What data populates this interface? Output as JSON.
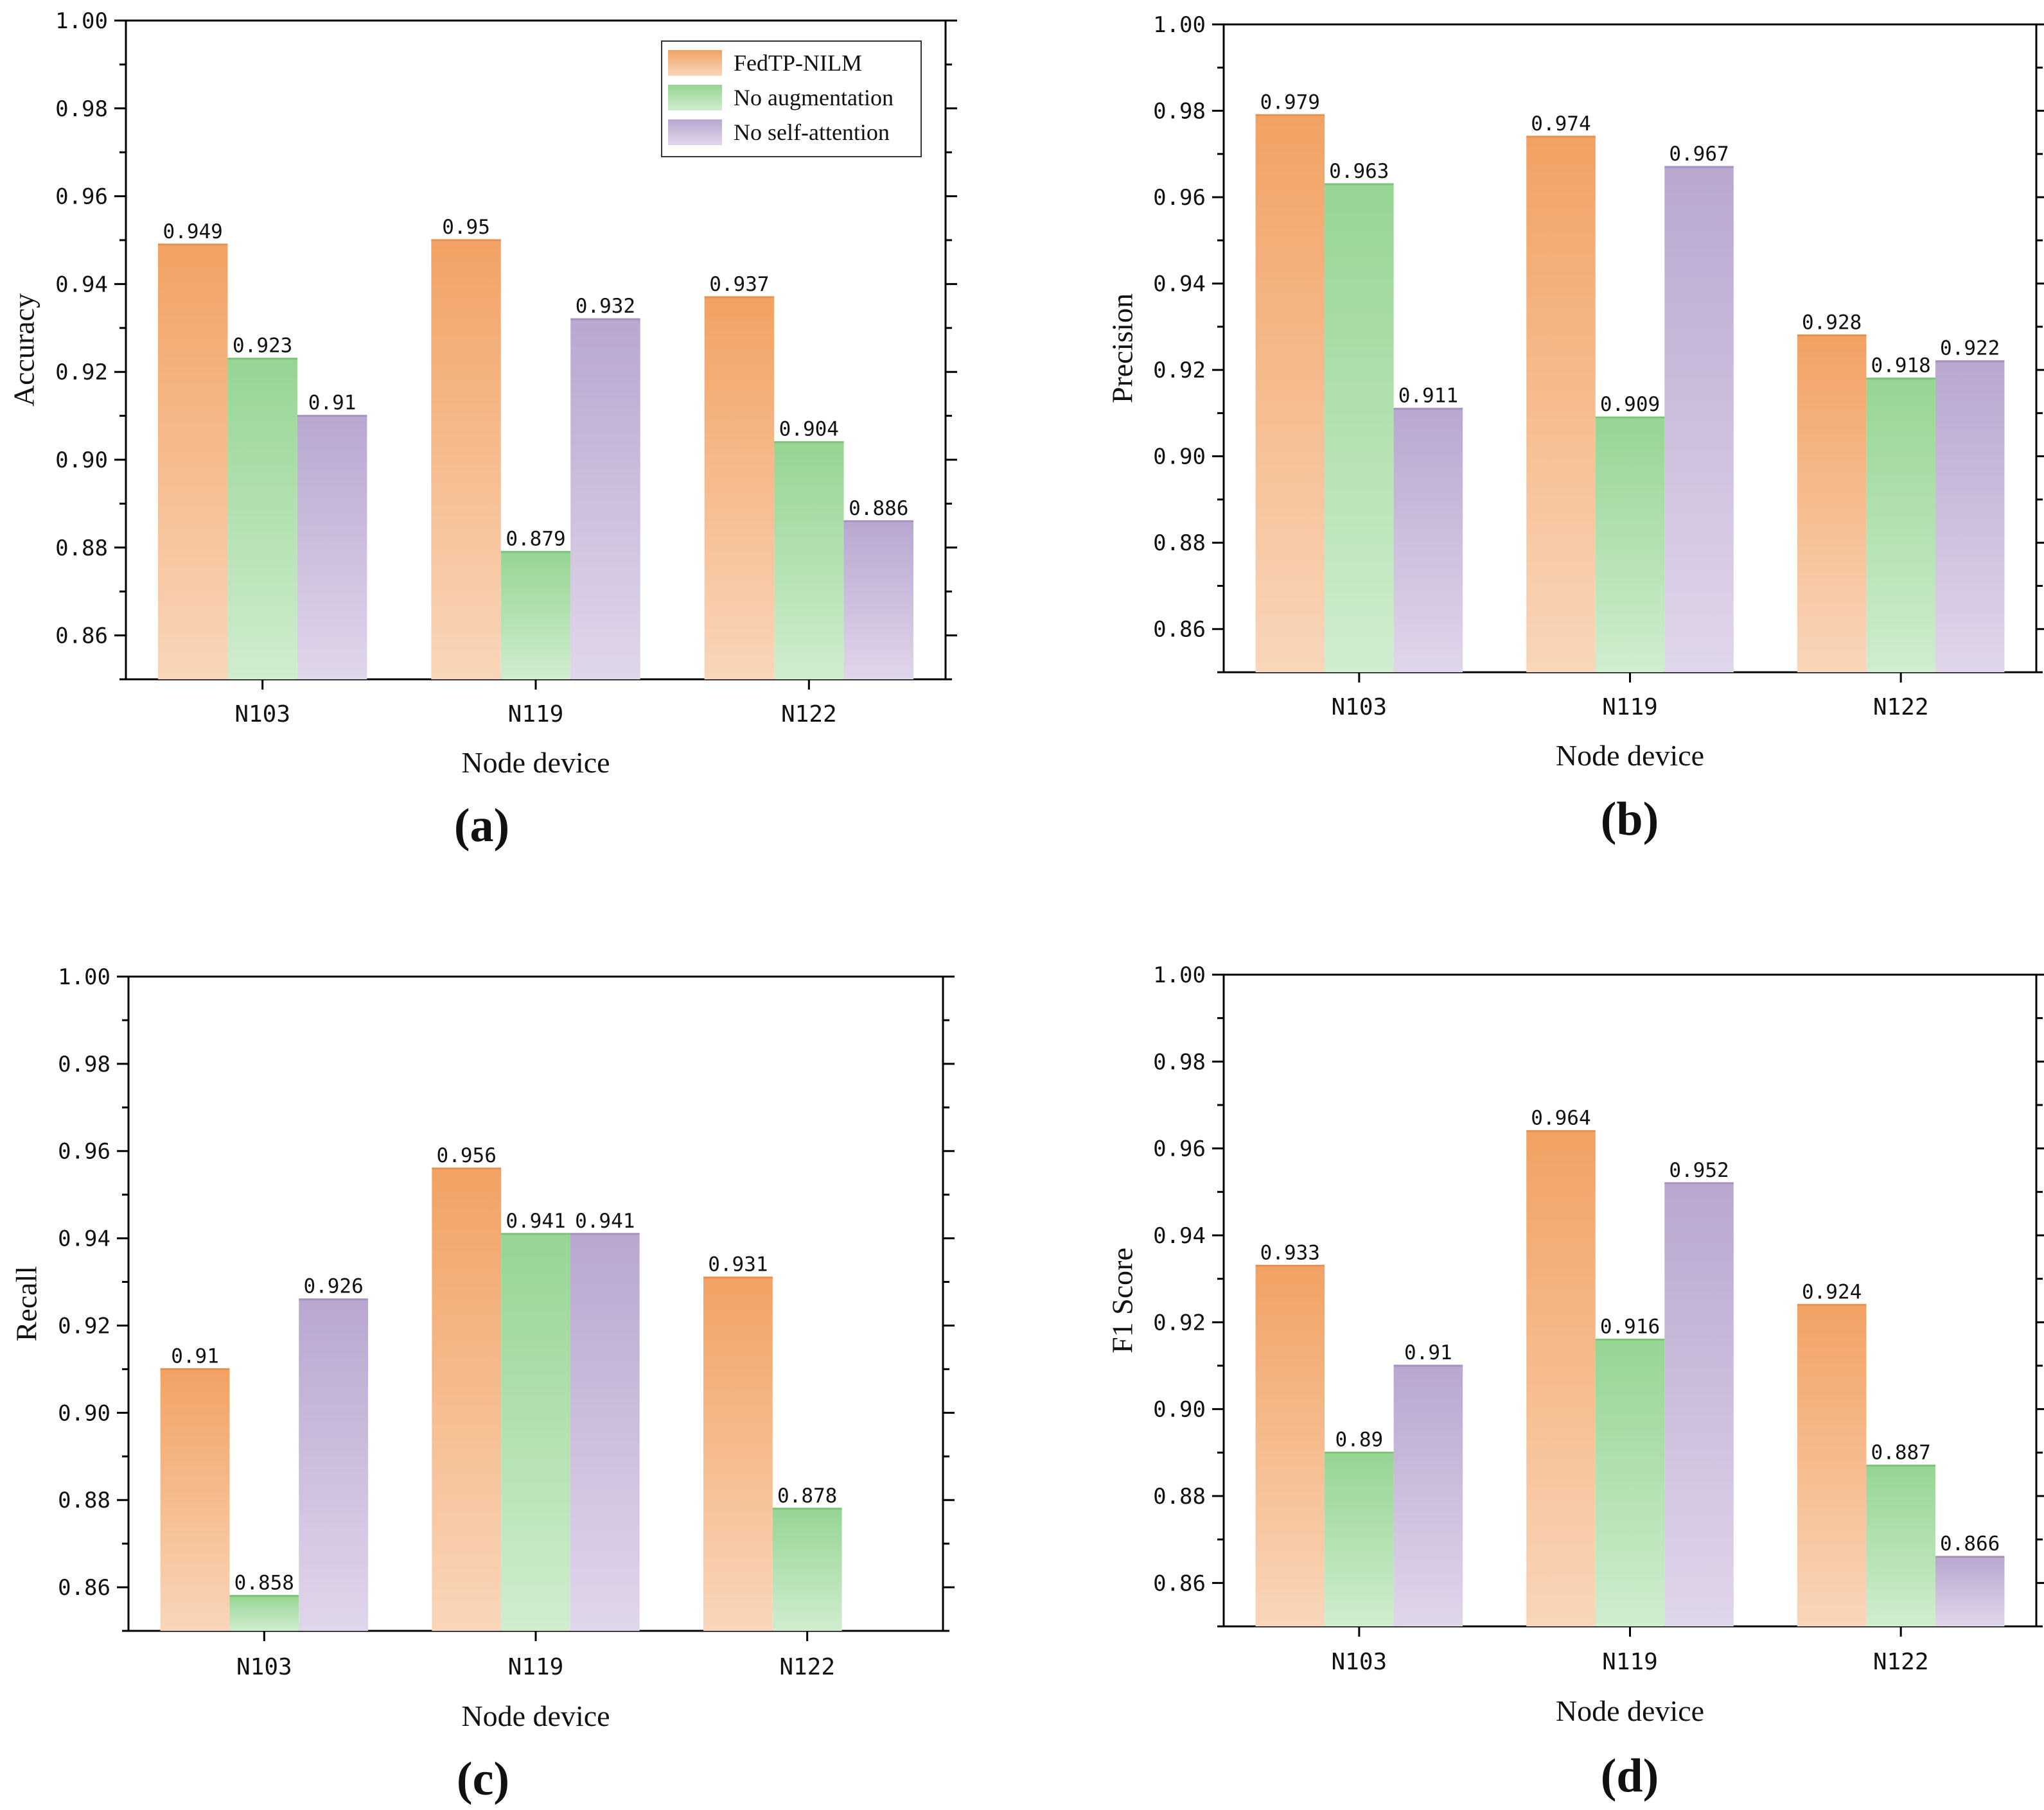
{
  "colors": {
    "FedTP-NILM": {
      "top": "#F2A263",
      "bottom": "#F9D6BA"
    },
    "No augmentation": {
      "top": "#96D593",
      "bottom": "#D0EDCF"
    },
    "No self-attention": {
      "top": "#B9A7D0",
      "bottom": "#E0D6EA"
    }
  },
  "legend": [
    "FedTP-NILM",
    "No augmentation",
    "No self-attention"
  ],
  "chart_data": [
    {
      "type": "bar",
      "panel": "(a)",
      "categories": [
        "N103",
        "N119",
        "N122"
      ],
      "series": [
        {
          "name": "FedTP-NILM",
          "values": [
            0.949,
            0.95,
            0.937
          ],
          "labels": [
            "0.949",
            "0.95",
            "0.937"
          ]
        },
        {
          "name": "No augmentation",
          "values": [
            0.923,
            0.879,
            0.904
          ],
          "labels": [
            "0.923",
            "0.879",
            "0.904"
          ]
        },
        {
          "name": "No self-attention",
          "values": [
            0.91,
            0.932,
            0.886
          ],
          "labels": [
            "0.91",
            "0.932",
            "0.886"
          ]
        }
      ],
      "xlabel": "Node device",
      "ylabel": "Accuracy",
      "ylim": [
        0.85,
        1.0
      ],
      "yticks": [
        "0.86",
        "0.88",
        "0.90",
        "0.92",
        "0.94",
        "0.96",
        "0.98",
        "1.00"
      ],
      "legend_position": "top-right"
    },
    {
      "type": "bar",
      "panel": "(b)",
      "categories": [
        "N103",
        "N119",
        "N122"
      ],
      "series": [
        {
          "name": "FedTP-NILM",
          "values": [
            0.979,
            0.974,
            0.928
          ],
          "labels": [
            "0.979",
            "0.974",
            "0.928"
          ]
        },
        {
          "name": "No augmentation",
          "values": [
            0.963,
            0.909,
            0.918
          ],
          "labels": [
            "0.963",
            "0.909",
            "0.918"
          ]
        },
        {
          "name": "No self-attention",
          "values": [
            0.911,
            0.967,
            0.922
          ],
          "labels": [
            "0.911",
            "0.967",
            "0.922"
          ]
        }
      ],
      "xlabel": "Node device",
      "ylabel": "Precision",
      "ylim": [
        0.85,
        1.0
      ],
      "yticks": [
        "0.86",
        "0.88",
        "0.90",
        "0.92",
        "0.94",
        "0.96",
        "0.98",
        "1.00"
      ]
    },
    {
      "type": "bar",
      "panel": "(c)",
      "categories": [
        "N103",
        "N119",
        "N122"
      ],
      "series": [
        {
          "name": "FedTP-NILM",
          "values": [
            0.91,
            0.956,
            0.931
          ],
          "labels": [
            "0.91",
            "0.956",
            "0.931"
          ]
        },
        {
          "name": "No augmentation",
          "values": [
            0.858,
            0.941,
            0.878
          ],
          "labels": [
            "0.858",
            "0.941",
            "0.878"
          ]
        },
        {
          "name": "No self-attention",
          "values": [
            0.926,
            0.941,
            null
          ],
          "labels": [
            "0.926",
            "0.941",
            ""
          ]
        }
      ],
      "xlabel": "Node device",
      "ylabel": "Recall",
      "ylim": [
        0.85,
        1.0
      ],
      "yticks": [
        "0.86",
        "0.88",
        "0.90",
        "0.92",
        "0.94",
        "0.96",
        "0.98",
        "1.00"
      ]
    },
    {
      "type": "bar",
      "panel": "(d)",
      "categories": [
        "N103",
        "N119",
        "N122"
      ],
      "series": [
        {
          "name": "FedTP-NILM",
          "values": [
            0.933,
            0.964,
            0.924
          ],
          "labels": [
            "0.933",
            "0.964",
            "0.924"
          ]
        },
        {
          "name": "No augmentation",
          "values": [
            0.89,
            0.916,
            0.887
          ],
          "labels": [
            "0.89",
            "0.916",
            "0.887"
          ]
        },
        {
          "name": "No self-attention",
          "values": [
            0.91,
            0.952,
            0.866
          ],
          "labels": [
            "0.91",
            "0.952",
            "0.866"
          ]
        }
      ],
      "xlabel": "Node device",
      "ylabel": "F1 Score",
      "ylim": [
        0.85,
        1.0
      ],
      "yticks": [
        "0.86",
        "0.88",
        "0.90",
        "0.92",
        "0.94",
        "0.96",
        "0.98",
        "1.00"
      ]
    }
  ]
}
